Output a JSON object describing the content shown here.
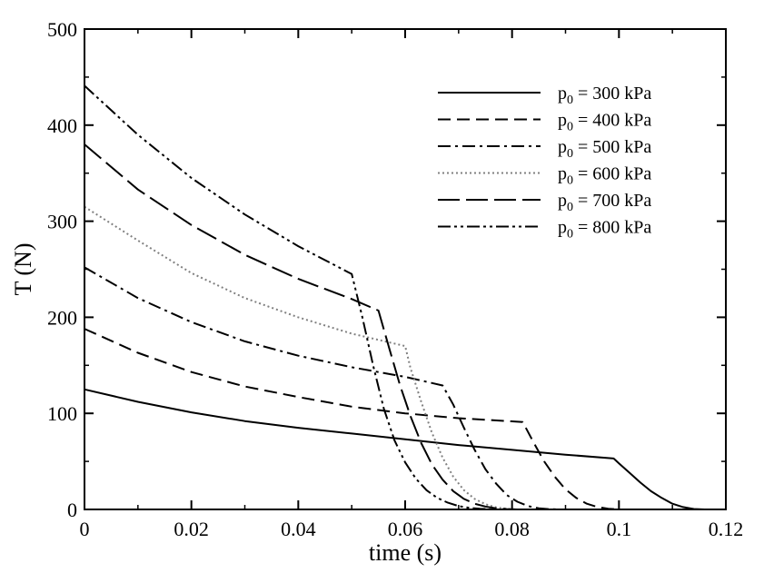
{
  "chart_data": {
    "type": "line",
    "xlabel": "time (s)",
    "ylabel": "T (N)",
    "xlim": [
      0,
      0.12
    ],
    "ylim": [
      0,
      500
    ],
    "xticks": [
      "0",
      "0.02",
      "0.04",
      "0.06",
      "0.08",
      "0.1",
      "0.12"
    ],
    "yticks": [
      "0",
      "100",
      "200",
      "300",
      "400",
      "500"
    ],
    "grid": false,
    "legend_position": "top-right",
    "series": [
      {
        "name": "p0 = 300 kPa",
        "legend": {
          "symbol": "p",
          "sub": "0",
          "rest": " = 300 kPa"
        },
        "style": "solid",
        "color": "#000000",
        "x": [
          0,
          0.01,
          0.02,
          0.03,
          0.04,
          0.05,
          0.06,
          0.07,
          0.08,
          0.09,
          0.099,
          0.1,
          0.102,
          0.104,
          0.106,
          0.108,
          0.11,
          0.112,
          0.114,
          0.116
        ],
        "y": [
          125,
          112,
          101,
          92,
          85,
          79,
          73,
          67,
          62,
          57,
          53,
          48,
          38,
          28,
          19,
          12,
          6,
          2.5,
          0.5,
          0
        ]
      },
      {
        "name": "p0 = 400 kPa",
        "legend": {
          "symbol": "p",
          "sub": "0",
          "rest": " = 400 kPa"
        },
        "style": "dashed",
        "color": "#000000",
        "x": [
          0,
          0.01,
          0.02,
          0.03,
          0.04,
          0.05,
          0.06,
          0.07,
          0.082,
          0.084,
          0.086,
          0.088,
          0.09,
          0.092,
          0.094,
          0.096,
          0.098,
          0.1
        ],
        "y": [
          188,
          163,
          143,
          128,
          117,
          107,
          100,
          95,
          91,
          70,
          50,
          34,
          21,
          12,
          6,
          2.5,
          0.8,
          0
        ]
      },
      {
        "name": "p0 = 500 kPa",
        "legend": {
          "symbol": "p",
          "sub": "0",
          "rest": " = 500 kPa"
        },
        "style": "dashdot",
        "color": "#000000",
        "x": [
          0,
          0.01,
          0.02,
          0.03,
          0.04,
          0.05,
          0.06,
          0.067,
          0.069,
          0.071,
          0.073,
          0.075,
          0.077,
          0.079,
          0.081,
          0.083,
          0.085,
          0.087,
          0.089
        ],
        "y": [
          252,
          220,
          195,
          175,
          160,
          148,
          138,
          129,
          109,
          85,
          62,
          42,
          27,
          15,
          8,
          3.5,
          1.2,
          0.3,
          0
        ]
      },
      {
        "name": "p0 = 600 kPa",
        "legend": {
          "symbol": "p",
          "sub": "0",
          "rest": " = 600 kPa"
        },
        "style": "dotted",
        "color": "#808080",
        "x": [
          0,
          0.01,
          0.02,
          0.03,
          0.04,
          0.05,
          0.06,
          0.061,
          0.063,
          0.065,
          0.067,
          0.069,
          0.071,
          0.073,
          0.075,
          0.077,
          0.079,
          0.081
        ],
        "y": [
          315,
          280,
          246,
          220,
          200,
          183,
          170,
          147,
          112,
          80,
          54,
          34,
          20,
          11,
          5.5,
          2.2,
          0.7,
          0
        ]
      },
      {
        "name": "p0 = 700 kPa",
        "legend": {
          "symbol": "p",
          "sub": "0",
          "rest": " = 700 kPa"
        },
        "style": "longdash",
        "color": "#000000",
        "x": [
          0,
          0.01,
          0.02,
          0.03,
          0.04,
          0.05,
          0.055,
          0.057,
          0.059,
          0.061,
          0.063,
          0.065,
          0.067,
          0.069,
          0.071,
          0.073,
          0.075,
          0.077,
          0.079,
          0.081
        ],
        "y": [
          380,
          333,
          296,
          265,
          240,
          219,
          207,
          168,
          130,
          97,
          69,
          47,
          31,
          19,
          11,
          6,
          3,
          1.2,
          0.4,
          0
        ]
      },
      {
        "name": "p0 = 800 kPa",
        "legend": {
          "symbol": "p",
          "sub": "0",
          "rest": " = 800 kPa"
        },
        "style": "dashdotdot",
        "color": "#000000",
        "x": [
          0,
          0.01,
          0.02,
          0.03,
          0.04,
          0.05,
          0.052,
          0.054,
          0.056,
          0.058,
          0.06,
          0.062,
          0.064,
          0.066,
          0.068,
          0.07,
          0.072,
          0.074,
          0.076,
          0.078
        ],
        "y": [
          441,
          390,
          345,
          307,
          274,
          245,
          200,
          150,
          105,
          72,
          49,
          32,
          20,
          12,
          7,
          3.5,
          1.6,
          0.7,
          0.2,
          0
        ]
      }
    ]
  }
}
